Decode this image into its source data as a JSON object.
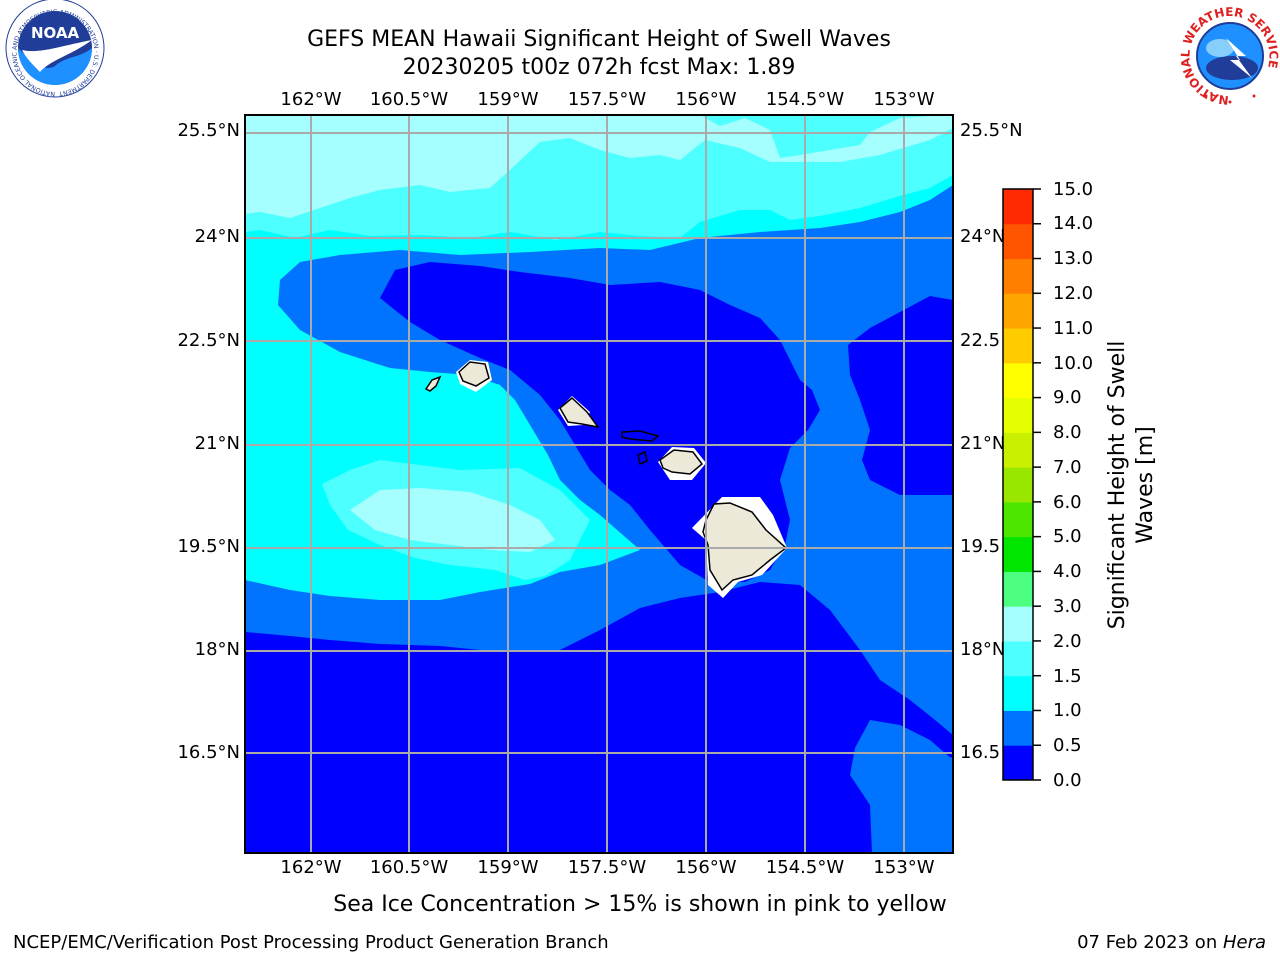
{
  "title": {
    "line1": "GEFS MEAN Hawaii Significant Height of Swell Waves",
    "line2": "20230205 t00z 072h fcst   Max: 1.89"
  },
  "axes": {
    "lon_ticks": [
      "162°W",
      "160.5°W",
      "159°W",
      "157.5°W",
      "156°W",
      "154.5°W",
      "153°W"
    ],
    "lat_ticks": [
      "25.5°N",
      "24°N",
      "22.5°N",
      "21°N",
      "19.5°N",
      "18°N",
      "16.5°N"
    ],
    "lat_ticks_right": [
      "25.5°N",
      "24°N",
      "22.5",
      "21°N",
      "19.5",
      "18°N",
      "16.5"
    ],
    "grid": true
  },
  "colorbar": {
    "label_line1": "Significant Height of Swell",
    "label_line2": "Waves [m]",
    "ticks": [
      "15.0",
      "14.0",
      "13.0",
      "12.0",
      "11.0",
      "10.0",
      "9.0",
      "8.0",
      "7.0",
      "6.0",
      "5.0",
      "4.0",
      "3.0",
      "2.0",
      "1.5",
      "1.0",
      "0.5",
      "0.0"
    ],
    "bins": [
      {
        "range": "0.0-0.5",
        "color": "#0000ff"
      },
      {
        "range": "0.5-1.0",
        "color": "#0073ff"
      },
      {
        "range": "1.0-1.5",
        "color": "#00ffff"
      },
      {
        "range": "1.5-2.0",
        "color": "#4dffff"
      },
      {
        "range": "2.0-3.0",
        "color": "#a6ffff"
      },
      {
        "range": "3.0-4.0",
        "color": "#4dff80"
      },
      {
        "range": "4.0-5.0",
        "color": "#00e600"
      },
      {
        "range": "5.0-6.0",
        "color": "#4de600"
      },
      {
        "range": "6.0-7.0",
        "color": "#99e600"
      },
      {
        "range": "7.0-8.0",
        "color": "#c8f000"
      },
      {
        "range": "8.0-9.0",
        "color": "#e6ff00"
      },
      {
        "range": "9.0-10.0",
        "color": "#ffff00"
      },
      {
        "range": "10.0-11.0",
        "color": "#ffcc00"
      },
      {
        "range": "11.0-12.0",
        "color": "#ffa500"
      },
      {
        "range": "12.0-13.0",
        "color": "#ff8000"
      },
      {
        "range": "13.0-14.0",
        "color": "#ff5500"
      },
      {
        "range": "14.0-15.0",
        "color": "#ff2a00"
      },
      {
        "range": "15.0+",
        "color": "#ff0000"
      }
    ]
  },
  "map": {
    "region": "Hawaii",
    "field": "Significant Height of Swell Waves",
    "land_color": "#ece9d8",
    "grid_color": "#aaaaaa"
  },
  "footer": {
    "note": "Sea Ice Concentration > 15% is shown in pink to yellow",
    "left": "NCEP/EMC/Verification Post Processing Product Generation Branch",
    "right_date": "07 Feb 2023 on ",
    "right_host": "Hera"
  },
  "logos": {
    "noaa": "NOAA",
    "noaa_ring": "NATIONAL OCEANIC AND ATMOSPHERIC ADMINISTRATION · U.S. DEPARTMENT OF COMMERCE",
    "nws_ring": "NATIONAL WEATHER SERVICE"
  }
}
